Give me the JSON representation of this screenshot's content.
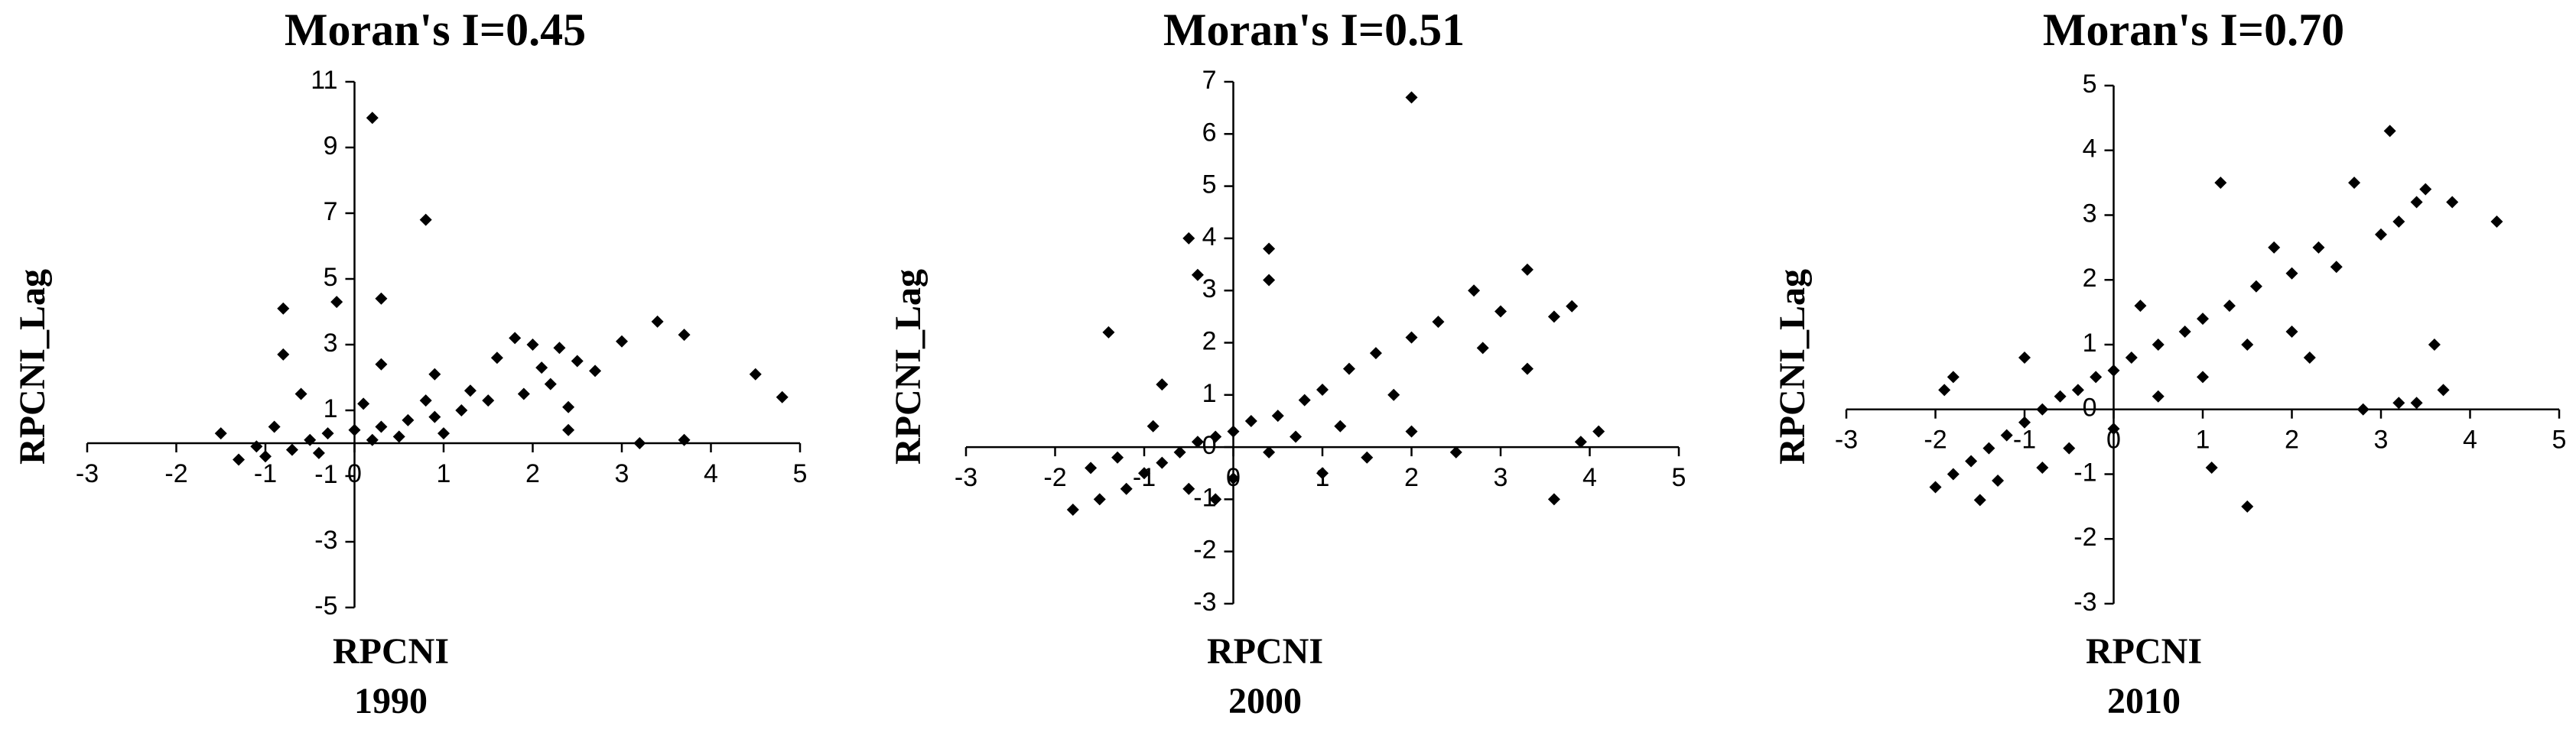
{
  "chart_data": [
    {
      "type": "scatter",
      "title": "Moran's I=0.45",
      "xlabel": "RPCNI",
      "ylabel": "RPCNI_Lag",
      "subtitle": "1990",
      "color": "#000000",
      "xlim": [
        -3,
        5
      ],
      "ylim": [
        -5,
        11
      ],
      "xticks": [
        -3,
        -2,
        -1,
        0,
        1,
        2,
        3,
        4,
        5
      ],
      "yticks": [
        -5,
        -3,
        -1,
        1,
        3,
        5,
        7,
        9,
        11
      ],
      "x": [
        0.2,
        0.8,
        0.3,
        -0.2,
        -0.8,
        -0.8,
        2.0,
        2.3,
        3.4,
        3.7,
        4.5,
        4.8,
        3.0,
        2.2,
        2.4,
        2.4,
        3.2,
        3.7,
        1.8,
        2.5,
        1.6,
        0.3,
        0.9,
        -0.6,
        -1.5,
        -1.3,
        -1.0,
        -0.7,
        -0.5,
        -0.3,
        0.0,
        0.3,
        0.6,
        0.9,
        1.2,
        1.5,
        -1.1,
        -0.4,
        0.2,
        0.5,
        0.8,
        1.0,
        1.3,
        -0.9,
        0.1,
        1.9,
        2.1,
        2.7
      ],
      "values": [
        9.9,
        6.8,
        4.4,
        4.3,
        4.1,
        2.7,
        3.0,
        2.9,
        3.7,
        3.3,
        2.1,
        1.4,
        3.1,
        1.8,
        1.1,
        0.4,
        0.0,
        0.1,
        3.2,
        2.5,
        2.6,
        2.4,
        2.1,
        1.5,
        0.3,
        -0.5,
        -0.4,
        -0.2,
        0.1,
        0.3,
        0.4,
        0.5,
        0.7,
        0.8,
        1.0,
        1.3,
        -0.1,
        -0.3,
        0.1,
        0.2,
        1.3,
        0.3,
        1.6,
        0.5,
        1.2,
        1.5,
        2.3,
        2.2
      ]
    },
    {
      "type": "scatter",
      "title": "Moran's I=0.51",
      "xlabel": "RPCNI",
      "ylabel": "RPCNI_Lag",
      "subtitle": "2000",
      "color": "#000000",
      "xlim": [
        -3,
        5
      ],
      "ylim": [
        -3,
        7
      ],
      "xticks": [
        -3,
        -2,
        -1,
        0,
        1,
        2,
        3,
        4,
        5
      ],
      "yticks": [
        -3,
        -2,
        -1,
        0,
        1,
        2,
        3,
        4,
        5,
        6,
        7
      ],
      "x": [
        2.0,
        -0.5,
        0.4,
        -0.4,
        0.4,
        3.3,
        3.8,
        3.6,
        3.3,
        3.9,
        4.1,
        3.6,
        2.7,
        2.3,
        2.0,
        1.6,
        1.3,
        -1.8,
        -1.5,
        -1.2,
        -1.0,
        -0.8,
        -0.6,
        -0.4,
        -0.2,
        0.0,
        0.2,
        0.5,
        0.8,
        1.0,
        -1.6,
        -1.3,
        -0.9,
        -0.5,
        0.0,
        0.4,
        0.7,
        1.2,
        1.5,
        2.0,
        2.5,
        1.8,
        2.8,
        -1.4,
        -0.8,
        3.0,
        1.0,
        -0.2
      ],
      "values": [
        6.7,
        4.0,
        3.8,
        3.3,
        3.2,
        3.4,
        2.7,
        2.5,
        1.5,
        0.1,
        0.3,
        -1.0,
        3.0,
        2.4,
        2.1,
        1.8,
        1.5,
        -1.2,
        -1.0,
        -0.8,
        -0.5,
        -0.3,
        -0.1,
        0.1,
        0.2,
        0.3,
        0.5,
        0.6,
        0.9,
        1.1,
        -0.4,
        -0.2,
        0.4,
        -0.8,
        -0.6,
        -0.1,
        0.2,
        0.4,
        -0.2,
        0.3,
        -0.1,
        1.0,
        1.9,
        2.2,
        1.2,
        2.6,
        -0.5,
        -1.0
      ]
    },
    {
      "type": "scatter",
      "title": "Moran's I=0.70",
      "xlabel": "RPCNI",
      "ylabel": "RPCNI_Lag",
      "subtitle": "2010",
      "color": "#000000",
      "xlim": [
        -3,
        5
      ],
      "ylim": [
        -3,
        5
      ],
      "xticks": [
        -3,
        -2,
        -1,
        0,
        1,
        2,
        3,
        4,
        5
      ],
      "yticks": [
        -3,
        -2,
        -1,
        0,
        1,
        2,
        3,
        4,
        5
      ],
      "x": [
        3.1,
        1.2,
        4.3,
        3.8,
        3.5,
        3.4,
        3.2,
        2.7,
        2.5,
        3.0,
        3.6,
        3.7,
        3.2,
        2.8,
        3.4,
        1.5,
        1.1,
        -2.0,
        -1.8,
        -1.6,
        -1.4,
        -1.2,
        -1.0,
        -0.8,
        -0.6,
        -0.4,
        -0.2,
        0.0,
        0.2,
        0.5,
        0.8,
        1.0,
        1.3,
        1.6,
        2.0,
        2.3,
        -1.9,
        -1.5,
        -1.0,
        -0.5,
        0.0,
        0.5,
        1.0,
        1.5,
        2.0,
        1.8,
        -1.8,
        0.3,
        2.2,
        -1.3,
        -0.8
      ],
      "values": [
        4.3,
        3.5,
        2.9,
        3.2,
        3.4,
        3.2,
        2.9,
        3.5,
        2.2,
        2.7,
        1.0,
        0.3,
        0.1,
        0.0,
        0.1,
        -1.5,
        -0.9,
        -1.2,
        -1.0,
        -0.8,
        -0.6,
        -0.4,
        -0.2,
        0.0,
        0.2,
        0.3,
        0.5,
        0.6,
        0.8,
        1.0,
        1.2,
        1.4,
        1.6,
        1.9,
        2.1,
        2.5,
        0.3,
        -1.4,
        0.8,
        -0.6,
        -0.3,
        0.2,
        0.5,
        1.0,
        1.2,
        2.5,
        0.5,
        1.6,
        0.8,
        -1.1,
        -0.9
      ]
    }
  ]
}
